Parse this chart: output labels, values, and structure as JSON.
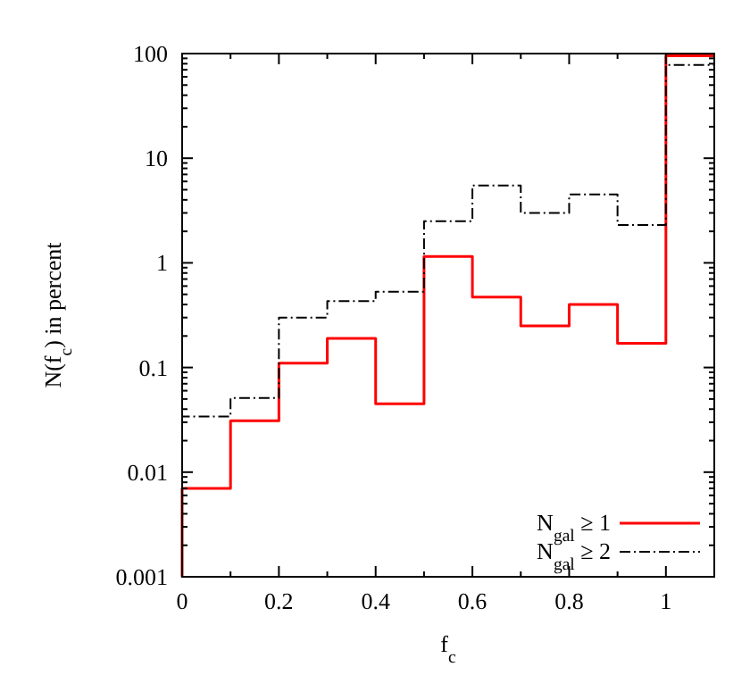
{
  "chart_data": {
    "type": "histogram",
    "xlabel": "f$_{c}$",
    "ylabel": "N(f$_{c}$) in percent",
    "log": "y",
    "bins": [
      0,
      0.1,
      0.2,
      0.3,
      0.4,
      0.5,
      0.6,
      0.7,
      0.8,
      0.9,
      1,
      1.1
    ],
    "series": [
      {
        "name": "N$_{gal}$ ≥ 1",
        "color": "#ff0000",
        "line_style": "solid",
        "values": [
          0.007,
          0.031,
          0.11,
          0.19,
          0.045,
          1.15,
          0.47,
          0.25,
          0.4,
          0.17,
          95
        ]
      },
      {
        "name": "N$_{gal}$ ≥ 2",
        "color": "#000000",
        "line_style": "dashed",
        "values": [
          0.034,
          0.051,
          0.3,
          0.43,
          0.53,
          2.5,
          5.5,
          3,
          4.5,
          2.3,
          78
        ]
      }
    ],
    "xlim": [
      0,
      1.1
    ],
    "ylim": [
      0.001,
      100
    ],
    "xticks": [
      0,
      {
        "value": 0.1,
        "label": null
      },
      0.2,
      {
        "value": 0.3,
        "label": null
      },
      0.4,
      {
        "value": 0.5,
        "label": null
      },
      0.6,
      {
        "value": 0.7,
        "label": null
      },
      0.8,
      {
        "value": 0.9,
        "label": null
      },
      1,
      {
        "value": 1.1,
        "label": null
      }
    ],
    "yticks": [
      0.001,
      0.01,
      0.1,
      1,
      10,
      100
    ],
    "grid": false,
    "legend": "bottom right"
  }
}
